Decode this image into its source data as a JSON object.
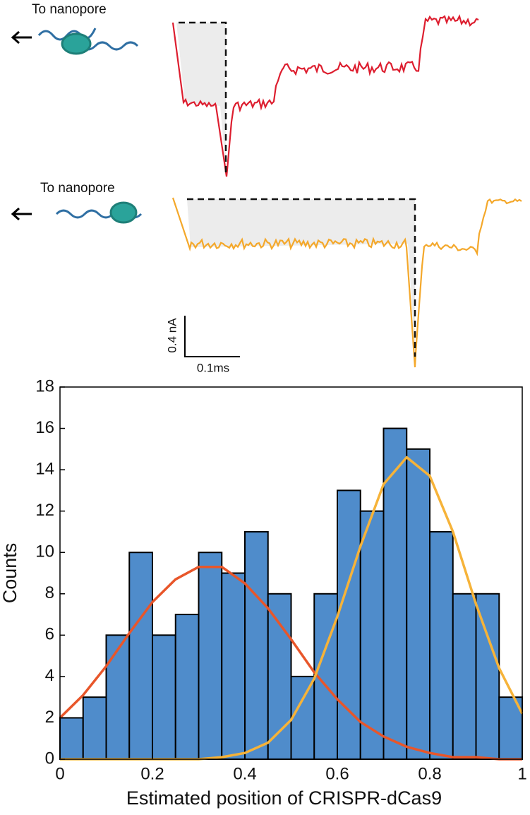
{
  "top_panel": {
    "labels": [
      "To nanopore",
      "To nanopore"
    ],
    "scale_bar": {
      "current": "0.4 nA",
      "time": "0.1ms"
    }
  },
  "chart_data": {
    "type": "histogram",
    "xlabel": "Estimated position of CRISPR-dCas9",
    "ylabel": "Counts",
    "bins": [
      0,
      0.05,
      0.1,
      0.15,
      0.2,
      0.25,
      0.3,
      0.35,
      0.4,
      0.45,
      0.5,
      0.55,
      0.6,
      0.65,
      0.7,
      0.75,
      0.8,
      0.85,
      0.9,
      0.95,
      1
    ],
    "values": [
      2,
      3,
      6,
      10,
      6,
      7,
      10,
      9,
      11,
      8,
      4,
      8,
      13,
      12,
      16,
      15,
      11,
      8,
      8,
      3
    ],
    "color": "#4f8ccb",
    "line_x": [
      0,
      0.05,
      0.1,
      0.15,
      0.2,
      0.25,
      0.3,
      0.35,
      0.4,
      0.45,
      0.5,
      0.55,
      0.6,
      0.65,
      0.7,
      0.75,
      0.8,
      0.85,
      0.9,
      0.95,
      1
    ],
    "lines": [
      {
        "color": "#e8562a",
        "values": [
          2.0,
          3.1,
          4.5,
          6.1,
          7.6,
          8.7,
          9.3,
          9.3,
          8.5,
          7.3,
          5.8,
          4.2,
          2.9,
          1.8,
          1.1,
          0.6,
          0.3,
          0.1,
          0.1,
          0.0,
          0.0
        ]
      },
      {
        "color": "#f6b339",
        "values": [
          0.0,
          0.0,
          0.0,
          0.0,
          0.0,
          0.0,
          0.0,
          0.1,
          0.3,
          0.8,
          1.9,
          3.9,
          6.9,
          10.3,
          13.3,
          14.6,
          13.7,
          11.0,
          7.5,
          4.4,
          2.2
        ]
      }
    ],
    "xlim": [
      0,
      1
    ],
    "ylim": [
      0,
      18
    ],
    "xticks": [
      0,
      0.2,
      0.4,
      0.6,
      0.8,
      1
    ],
    "yticks": [
      0,
      2,
      4,
      6,
      8,
      10,
      12,
      14,
      16,
      18
    ]
  }
}
